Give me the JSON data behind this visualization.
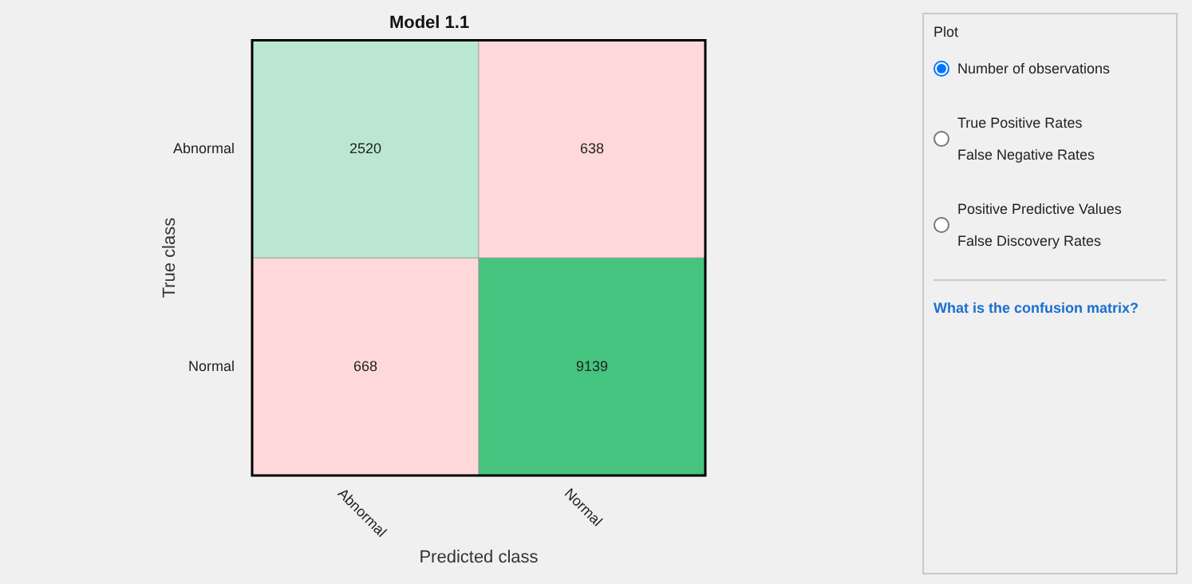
{
  "chart_data": [
    {
      "type": "heatmap",
      "title": "Model 1.1",
      "xlabel": "Predicted class",
      "ylabel": "True class",
      "categories": [
        "Abnormal",
        "Normal"
      ],
      "y_categories": [
        "Abnormal",
        "Normal"
      ],
      "cells": [
        [
          2520,
          638
        ],
        [
          668,
          9139
        ]
      ],
      "colors": [
        [
          "#bbe7d0",
          "#ffd9d9"
        ],
        [
          "#ffd9d9",
          "#44c47e"
        ]
      ],
      "data_labels": true,
      "grid": false,
      "legend": false
    },
    {
      "type": "other",
      "title": "Plot",
      "annotations": [
        "Number of observations",
        "True Positive Rates\nFalse Negative Rates",
        "Positive Predictive Values\nFalse Discovery Rates",
        "What is the confusion matrix?"
      ]
    }
  ]
}
